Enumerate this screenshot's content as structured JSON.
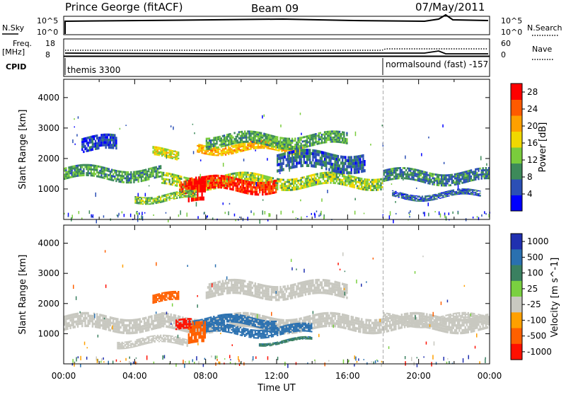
{
  "header": {
    "station": "Prince George (fitACF)",
    "beam": "Beam 09",
    "date": "07/May/2011"
  },
  "top_panels": {
    "nsky_label": "N.Sky",
    "nsky_ticks": [
      "10^5",
      "10^0"
    ],
    "nsearch_label": "N.Search",
    "nsearch_ticks": [
      "10^5",
      "10^0"
    ],
    "freq_label": "Freq.",
    "freq_unit": "[MHz]",
    "freq_ticks": [
      "18",
      "8"
    ],
    "nave_label": "Nave",
    "nave_ticks": [
      "60",
      "0"
    ],
    "cpid_label": "CPID",
    "cpid_segments": [
      {
        "text": "themis 3300",
        "start_hour": 0
      },
      {
        "text": "normalsound (fast) -157",
        "start_hour": 18
      }
    ]
  },
  "colors": {
    "power_scale": [
      "#0000ff",
      "#2b4fb5",
      "#3d8a5a",
      "#7acc3c",
      "#f0d800",
      "#ffa000",
      "#ff5a00",
      "#ff0000"
    ],
    "velocity_scale": [
      "#2030b0",
      "#2a70b0",
      "#3a8060",
      "#7ad040",
      "#c8c8c0",
      "#ffa000",
      "#ff6000",
      "#ff1000"
    ],
    "ground_scatter": "#c8c8c0"
  },
  "chart_data": [
    {
      "type": "heatmap",
      "title": "",
      "xlabel": "Time UT",
      "ylabel": "Slant Range [km]",
      "xlim": [
        0,
        24
      ],
      "ylim": [
        0,
        4600
      ],
      "x_ticks": [
        "00:00",
        "04:00",
        "08:00",
        "12:00",
        "16:00",
        "20:00",
        "00:00"
      ],
      "y_ticks": [
        1000,
        2000,
        3000,
        4000
      ],
      "colorbar": {
        "label": "Power [dB]",
        "ticks": [
          4,
          8,
          12,
          16,
          20,
          24,
          28
        ],
        "range": [
          0,
          30
        ]
      },
      "marker_hour": 18,
      "bands": [
        {
          "t0": 0.0,
          "t1": 5.5,
          "r0": 1300,
          "r1": 1700,
          "value": 10
        },
        {
          "t0": 5.5,
          "t1": 18.0,
          "r0": 1050,
          "r1": 1450,
          "value": 14
        },
        {
          "t0": 18.0,
          "t1": 24.0,
          "r0": 1200,
          "r1": 1600,
          "value": 8
        },
        {
          "t0": 6.5,
          "t1": 12.0,
          "r0": 900,
          "r1": 1350,
          "value": 27
        },
        {
          "t0": 7.0,
          "t1": 8.0,
          "r0": 500,
          "r1": 1300,
          "value": 29
        },
        {
          "t0": 4.0,
          "t1": 7.5,
          "r0": 600,
          "r1": 850,
          "value": 13
        },
        {
          "t0": 7.5,
          "t1": 13.5,
          "r0": 2200,
          "r1": 2500,
          "value": 19
        },
        {
          "t0": 8.0,
          "t1": 16.0,
          "r0": 2400,
          "r1": 2800,
          "value": 11
        },
        {
          "t0": 5.0,
          "t1": 6.5,
          "r0": 2000,
          "r1": 2300,
          "value": 16
        },
        {
          "t0": 12.0,
          "t1": 17.0,
          "r0": 1600,
          "r1": 2200,
          "value": 7
        },
        {
          "t0": 18.5,
          "t1": 23.5,
          "r0": 700,
          "r1": 900,
          "value": 6
        },
        {
          "t0": 1.0,
          "t1": 3.0,
          "r0": 2200,
          "r1": 2700,
          "value": 5
        }
      ]
    },
    {
      "type": "heatmap",
      "title": "",
      "xlabel": "Time UT",
      "ylabel": "Slant Range [km]",
      "xlim": [
        0,
        24
      ],
      "ylim": [
        0,
        4600
      ],
      "x_ticks": [
        "00:00",
        "04:00",
        "08:00",
        "12:00",
        "16:00",
        "20:00",
        "00:00"
      ],
      "y_ticks": [
        1000,
        2000,
        3000,
        4000
      ],
      "colorbar": {
        "label": "Velocity [m s^-1]",
        "ticks": [
          "1000",
          "500",
          "100",
          "25",
          "-25",
          "-100",
          "-500",
          "-1000"
        ]
      },
      "marker_hour": 18,
      "bands": [
        {
          "t0": 0.0,
          "t1": 5.5,
          "r0": 1100,
          "r1": 1600,
          "value": 0
        },
        {
          "t0": 5.5,
          "t1": 24.0,
          "r0": 1100,
          "r1": 1600,
          "value": 0
        },
        {
          "t0": 7.0,
          "t1": 12.0,
          "r0": 1250,
          "r1": 1550,
          "value": 150
        },
        {
          "t0": 8.0,
          "t1": 14.0,
          "r0": 950,
          "r1": 1250,
          "value": 200
        },
        {
          "t0": 7.0,
          "t1": 8.0,
          "r0": 600,
          "r1": 1300,
          "value": -300
        },
        {
          "t0": 6.3,
          "t1": 7.2,
          "r0": 1050,
          "r1": 1400,
          "value": -600
        },
        {
          "t0": 5.0,
          "t1": 6.5,
          "r0": 2000,
          "r1": 2300,
          "value": -200
        },
        {
          "t0": 3.0,
          "t1": 7.0,
          "r0": 600,
          "r1": 850,
          "value": 0
        },
        {
          "t0": 8.0,
          "t1": 16.0,
          "r0": 2200,
          "r1": 2700,
          "value": 0
        },
        {
          "t0": 11.0,
          "t1": 14.0,
          "r0": 700,
          "r1": 800,
          "value": 80
        },
        {
          "t0": 18.0,
          "t1": 24.0,
          "r0": 1300,
          "r1": 1600,
          "value": 0
        }
      ]
    }
  ]
}
